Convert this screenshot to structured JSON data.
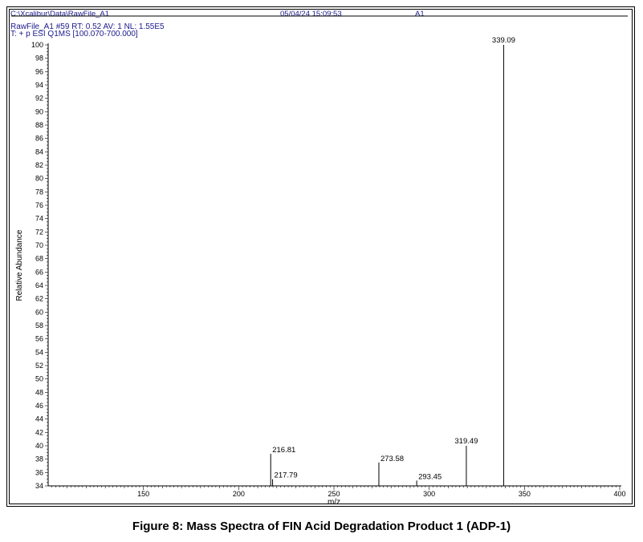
{
  "header": {
    "file_path": "C:\\Xcalibur\\Data\\RawFile_A1",
    "datetime": "05/04/24 15:09:53",
    "sample": "A1"
  },
  "scan_info": {
    "line1": "RawFile_A1 #59   RT: 0.52   AV: 1   NL: 1.55E5",
    "line2": "T: + p ESI Q1MS [100.070-700.000]"
  },
  "caption": "Figure 8: Mass Spectra of FIN Acid Degradation Product 1 (ADP-1)",
  "chart_data": {
    "type": "bar",
    "xlabel": "m/z",
    "ylabel": "Relative Abundance",
    "xlim": [
      100,
      400
    ],
    "ylim": [
      34,
      100
    ],
    "x_ticks": [
      150,
      200,
      250,
      300,
      350,
      400
    ],
    "y_ticks": [
      34,
      36,
      38,
      40,
      42,
      44,
      46,
      48,
      50,
      52,
      54,
      56,
      58,
      60,
      62,
      64,
      66,
      68,
      70,
      72,
      74,
      76,
      78,
      80,
      82,
      84,
      86,
      88,
      90,
      92,
      94,
      96,
      98,
      100
    ],
    "peaks": [
      {
        "mz": 216.81,
        "intensity": 38.8,
        "label": "216.81"
      },
      {
        "mz": 217.79,
        "intensity": 35.0,
        "label": "217.79"
      },
      {
        "mz": 273.58,
        "intensity": 37.5,
        "label": "273.58"
      },
      {
        "mz": 293.45,
        "intensity": 34.8,
        "label": "293.45"
      },
      {
        "mz": 319.49,
        "intensity": 40.0,
        "label": "319.49"
      },
      {
        "mz": 339.09,
        "intensity": 100,
        "label": "339.09"
      }
    ]
  }
}
